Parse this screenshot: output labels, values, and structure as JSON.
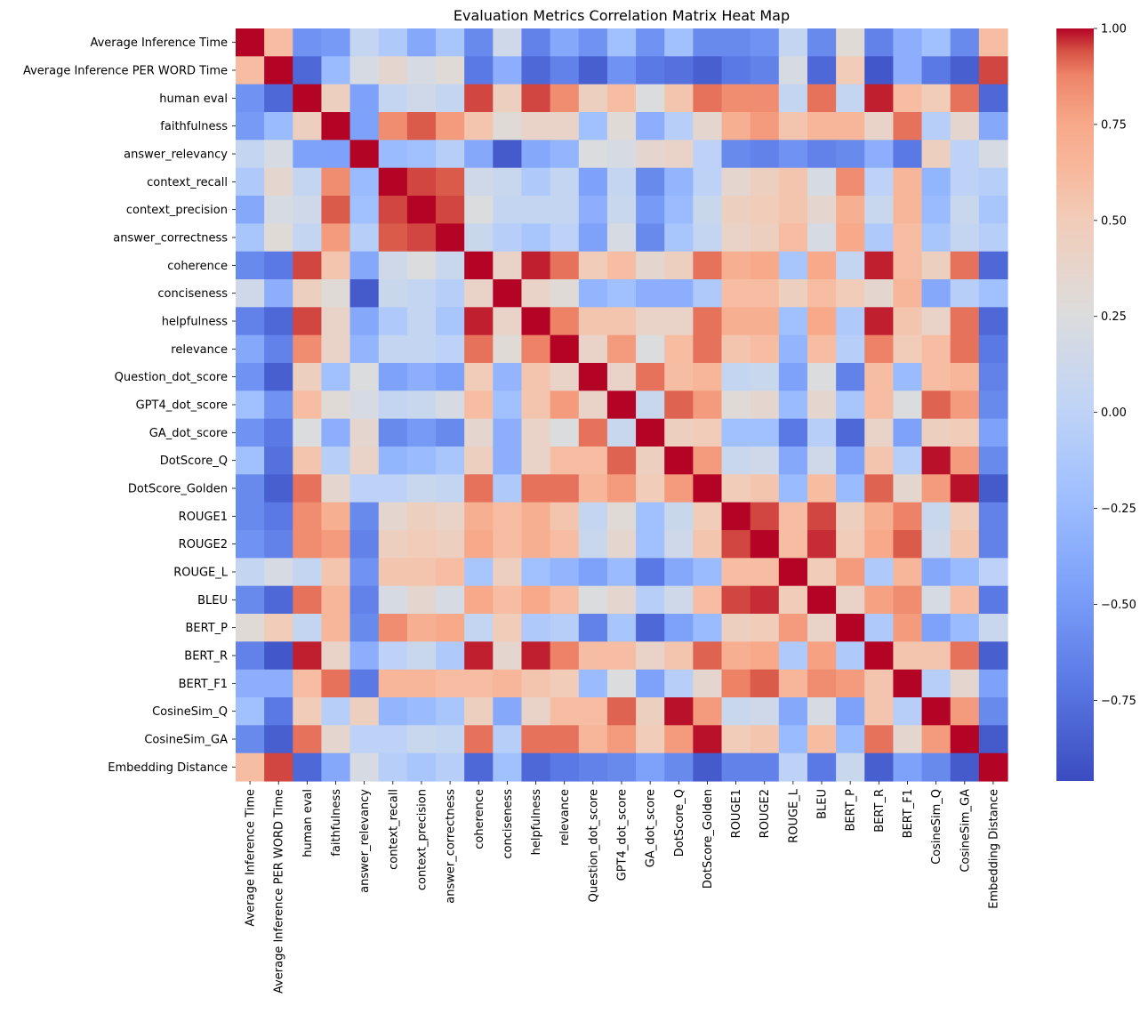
{
  "chart_data": {
    "type": "heatmap",
    "title": "Evaluation Metrics Correlation Matrix Heat Map",
    "xlabel": "",
    "ylabel": "",
    "colormap": "coolwarm",
    "vmin": -0.96,
    "vmax": 1.0,
    "colorbar_ticks": [
      -0.75,
      -0.5,
      -0.25,
      0.0,
      0.25,
      0.5,
      0.75,
      1.0
    ],
    "colorbar_tick_labels": [
      "−0.75",
      "−0.50",
      "−0.25",
      "0.00",
      "0.25",
      "0.50",
      "0.75",
      "1.00"
    ],
    "labels": [
      "Average Inference Time",
      "Average Inference PER WORD Time",
      "human eval",
      "faithfulness",
      "answer_relevancy",
      "context_recall",
      "context_precision",
      "answer_correctness",
      "coherence",
      "conciseness",
      "helpfulness",
      "relevance",
      "Question_dot_score",
      "GPT4_dot_score",
      "GA_dot_score",
      "DotScore_Q",
      "DotScore_Golden",
      "ROUGE1",
      "ROUGE2",
      "ROUGE_L",
      "BLEU",
      "BERT_P",
      "BERT_R",
      "BERT_F1",
      "CosineSim_Q",
      "CosineSim_GA",
      "Embedding Distance"
    ],
    "matrix": [
      [
        1.0,
        0.6,
        -0.55,
        -0.5,
        0.05,
        -0.1,
        -0.4,
        -0.15,
        -0.6,
        0.15,
        -0.65,
        -0.4,
        -0.55,
        -0.2,
        -0.55,
        -0.2,
        -0.6,
        -0.6,
        -0.55,
        0.05,
        -0.6,
        0.3,
        -0.65,
        -0.35,
        -0.2,
        -0.6,
        0.6
      ],
      [
        0.6,
        1.0,
        -0.8,
        -0.25,
        0.2,
        0.35,
        0.2,
        0.3,
        -0.7,
        -0.35,
        -0.8,
        -0.65,
        -0.85,
        -0.55,
        -0.7,
        -0.75,
        -0.85,
        -0.7,
        -0.65,
        0.2,
        -0.8,
        0.5,
        -0.9,
        -0.35,
        -0.7,
        -0.85,
        0.95
      ],
      [
        -0.55,
        -0.8,
        1.0,
        0.45,
        -0.45,
        0.05,
        0.15,
        0.05,
        0.95,
        0.45,
        0.95,
        0.85,
        0.45,
        0.6,
        0.25,
        0.55,
        0.9,
        0.85,
        0.85,
        0.05,
        0.9,
        0.05,
        0.98,
        0.6,
        0.5,
        0.9,
        -0.8
      ],
      [
        -0.5,
        -0.25,
        0.45,
        1.0,
        -0.45,
        0.85,
        0.93,
        0.8,
        0.55,
        0.3,
        0.4,
        0.4,
        -0.2,
        0.3,
        -0.35,
        -0.05,
        0.35,
        0.7,
        0.8,
        0.55,
        0.65,
        0.65,
        0.4,
        0.9,
        -0.05,
        0.35,
        -0.4
      ],
      [
        0.05,
        0.2,
        -0.45,
        -0.45,
        1.0,
        -0.25,
        -0.2,
        -0.05,
        -0.4,
        -0.88,
        -0.4,
        -0.3,
        0.25,
        0.2,
        0.35,
        0.4,
        0.0,
        -0.6,
        -0.65,
        -0.55,
        -0.65,
        -0.6,
        -0.35,
        -0.7,
        0.45,
        0.0,
        0.2
      ],
      [
        -0.1,
        0.35,
        0.05,
        0.85,
        -0.25,
        1.0,
        0.95,
        0.93,
        0.15,
        0.1,
        -0.1,
        0.05,
        -0.45,
        0.05,
        -0.6,
        -0.3,
        0.0,
        0.35,
        0.45,
        0.55,
        0.2,
        0.85,
        0.0,
        0.65,
        -0.3,
        0.0,
        -0.05
      ],
      [
        -0.4,
        0.2,
        0.15,
        0.93,
        -0.2,
        0.95,
        1.0,
        0.95,
        0.25,
        0.05,
        0.05,
        0.05,
        -0.35,
        0.1,
        -0.5,
        -0.25,
        0.1,
        0.45,
        0.5,
        0.55,
        0.35,
        0.7,
        0.1,
        0.65,
        -0.25,
        0.1,
        -0.15
      ],
      [
        -0.15,
        0.3,
        0.05,
        0.8,
        -0.05,
        0.93,
        0.95,
        1.0,
        0.1,
        -0.05,
        -0.15,
        0.0,
        -0.45,
        0.2,
        -0.6,
        -0.15,
        0.05,
        0.4,
        0.45,
        0.6,
        0.2,
        0.75,
        -0.1,
        0.6,
        -0.15,
        0.05,
        -0.05
      ],
      [
        -0.6,
        -0.7,
        0.95,
        0.55,
        -0.4,
        0.15,
        0.25,
        0.1,
        1.0,
        0.4,
        0.98,
        0.9,
        0.5,
        0.6,
        0.35,
        0.45,
        0.9,
        0.7,
        0.75,
        -0.15,
        0.75,
        0.05,
        0.98,
        0.6,
        0.45,
        0.9,
        -0.8
      ],
      [
        0.15,
        -0.35,
        0.45,
        0.3,
        -0.88,
        0.1,
        0.05,
        -0.05,
        0.4,
        1.0,
        0.4,
        0.3,
        -0.3,
        -0.2,
        -0.35,
        -0.35,
        -0.1,
        0.6,
        0.6,
        0.45,
        0.6,
        0.5,
        0.35,
        0.65,
        -0.4,
        -0.05,
        -0.2
      ],
      [
        -0.65,
        -0.8,
        0.95,
        0.4,
        -0.4,
        -0.1,
        0.05,
        -0.15,
        0.98,
        0.4,
        1.0,
        0.88,
        0.55,
        0.55,
        0.4,
        0.4,
        0.9,
        0.7,
        0.7,
        -0.2,
        0.75,
        -0.1,
        0.98,
        0.55,
        0.4,
        0.9,
        -0.8
      ],
      [
        -0.4,
        -0.65,
        0.85,
        0.4,
        -0.3,
        0.05,
        0.05,
        0.0,
        0.9,
        0.3,
        0.88,
        1.0,
        0.4,
        0.8,
        0.25,
        0.6,
        0.9,
        0.55,
        0.6,
        -0.3,
        0.6,
        -0.05,
        0.88,
        0.5,
        0.6,
        0.9,
        -0.7
      ],
      [
        -0.55,
        -0.85,
        0.45,
        -0.2,
        0.25,
        -0.45,
        -0.35,
        -0.45,
        0.5,
        -0.3,
        0.55,
        0.4,
        1.0,
        0.4,
        0.9,
        0.6,
        0.65,
        0.05,
        0.1,
        -0.45,
        0.25,
        -0.65,
        0.6,
        -0.25,
        0.6,
        0.65,
        -0.65
      ],
      [
        -0.2,
        -0.55,
        0.6,
        0.3,
        0.2,
        0.05,
        0.1,
        0.2,
        0.6,
        -0.2,
        0.55,
        0.8,
        0.4,
        1.0,
        0.1,
        0.92,
        0.8,
        0.3,
        0.35,
        -0.25,
        0.35,
        -0.15,
        0.6,
        0.25,
        0.92,
        0.8,
        -0.6
      ],
      [
        -0.55,
        -0.7,
        0.25,
        -0.35,
        0.35,
        -0.6,
        -0.5,
        -0.6,
        0.35,
        -0.35,
        0.4,
        0.25,
        0.9,
        0.1,
        1.0,
        0.45,
        0.5,
        -0.2,
        -0.2,
        -0.7,
        -0.05,
        -0.8,
        0.4,
        -0.45,
        0.45,
        0.5,
        -0.45
      ],
      [
        -0.2,
        -0.75,
        0.55,
        -0.05,
        0.4,
        -0.3,
        -0.25,
        -0.15,
        0.45,
        -0.35,
        0.4,
        0.6,
        0.6,
        0.92,
        0.45,
        1.0,
        0.8,
        0.1,
        0.15,
        -0.4,
        0.15,
        -0.45,
        0.55,
        -0.05,
        0.99,
        0.8,
        -0.6
      ],
      [
        -0.6,
        -0.85,
        0.9,
        0.35,
        0.0,
        0.0,
        0.1,
        0.05,
        0.9,
        -0.1,
        0.9,
        0.9,
        0.65,
        0.8,
        0.5,
        0.8,
        1.0,
        0.5,
        0.55,
        -0.25,
        0.6,
        -0.25,
        0.92,
        0.35,
        0.8,
        0.99,
        -0.88
      ],
      [
        -0.6,
        -0.7,
        0.85,
        0.7,
        -0.6,
        0.35,
        0.45,
        0.4,
        0.7,
        0.6,
        0.7,
        0.55,
        0.05,
        0.3,
        -0.2,
        0.1,
        0.5,
        1.0,
        0.95,
        0.6,
        0.95,
        0.45,
        0.7,
        0.88,
        0.1,
        0.5,
        -0.65
      ],
      [
        -0.55,
        -0.65,
        0.85,
        0.8,
        -0.65,
        0.45,
        0.5,
        0.45,
        0.75,
        0.6,
        0.7,
        0.6,
        0.1,
        0.35,
        -0.2,
        0.15,
        0.55,
        0.95,
        1.0,
        0.6,
        0.97,
        0.5,
        0.75,
        0.93,
        0.15,
        0.55,
        -0.65
      ],
      [
        0.05,
        0.2,
        0.05,
        0.55,
        -0.55,
        0.55,
        0.55,
        0.6,
        -0.15,
        0.45,
        -0.2,
        -0.3,
        -0.45,
        -0.25,
        -0.7,
        -0.4,
        -0.25,
        0.6,
        0.6,
        1.0,
        0.5,
        0.8,
        -0.1,
        0.65,
        -0.4,
        -0.25,
        0.0
      ],
      [
        -0.6,
        -0.8,
        0.9,
        0.65,
        -0.65,
        0.2,
        0.35,
        0.2,
        0.75,
        0.6,
        0.75,
        0.6,
        0.25,
        0.35,
        -0.05,
        0.15,
        0.6,
        0.95,
        0.97,
        0.5,
        1.0,
        0.4,
        0.78,
        0.85,
        0.2,
        0.6,
        -0.7
      ],
      [
        0.3,
        0.5,
        0.05,
        0.65,
        -0.6,
        0.85,
        0.7,
        0.75,
        0.05,
        0.5,
        -0.1,
        -0.05,
        -0.65,
        -0.15,
        -0.8,
        -0.45,
        -0.25,
        0.45,
        0.5,
        0.8,
        0.4,
        1.0,
        -0.1,
        0.8,
        -0.45,
        -0.25,
        0.1
      ],
      [
        -0.65,
        -0.9,
        0.98,
        0.4,
        -0.35,
        0.0,
        0.1,
        -0.1,
        0.98,
        0.35,
        0.98,
        0.88,
        0.6,
        0.6,
        0.4,
        0.55,
        0.92,
        0.7,
        0.75,
        -0.1,
        0.78,
        -0.1,
        1.0,
        0.55,
        0.55,
        0.9,
        -0.85
      ],
      [
        -0.35,
        -0.35,
        0.6,
        0.9,
        -0.7,
        0.65,
        0.65,
        0.6,
        0.6,
        0.65,
        0.55,
        0.5,
        -0.25,
        0.25,
        -0.45,
        -0.05,
        0.35,
        0.88,
        0.93,
        0.65,
        0.85,
        0.8,
        0.55,
        1.0,
        -0.05,
        0.35,
        -0.45
      ],
      [
        -0.2,
        -0.7,
        0.5,
        -0.05,
        0.45,
        -0.3,
        -0.25,
        -0.15,
        0.45,
        -0.4,
        0.4,
        0.6,
        0.6,
        0.92,
        0.45,
        0.99,
        0.8,
        0.1,
        0.15,
        -0.4,
        0.2,
        -0.45,
        0.55,
        -0.05,
        1.0,
        0.8,
        -0.6
      ],
      [
        -0.6,
        -0.85,
        0.9,
        0.35,
        0.0,
        0.0,
        0.1,
        0.05,
        0.9,
        -0.05,
        0.9,
        0.9,
        0.65,
        0.8,
        0.5,
        0.8,
        0.99,
        0.5,
        0.55,
        -0.25,
        0.6,
        -0.25,
        0.9,
        0.35,
        0.8,
        1.0,
        -0.88
      ],
      [
        0.6,
        0.95,
        -0.8,
        -0.4,
        0.2,
        -0.05,
        -0.15,
        -0.05,
        -0.8,
        -0.2,
        -0.8,
        -0.7,
        -0.65,
        -0.6,
        -0.45,
        -0.6,
        -0.88,
        -0.65,
        -0.65,
        0.0,
        -0.7,
        0.1,
        -0.85,
        -0.45,
        -0.6,
        -0.88,
        1.0
      ]
    ]
  }
}
